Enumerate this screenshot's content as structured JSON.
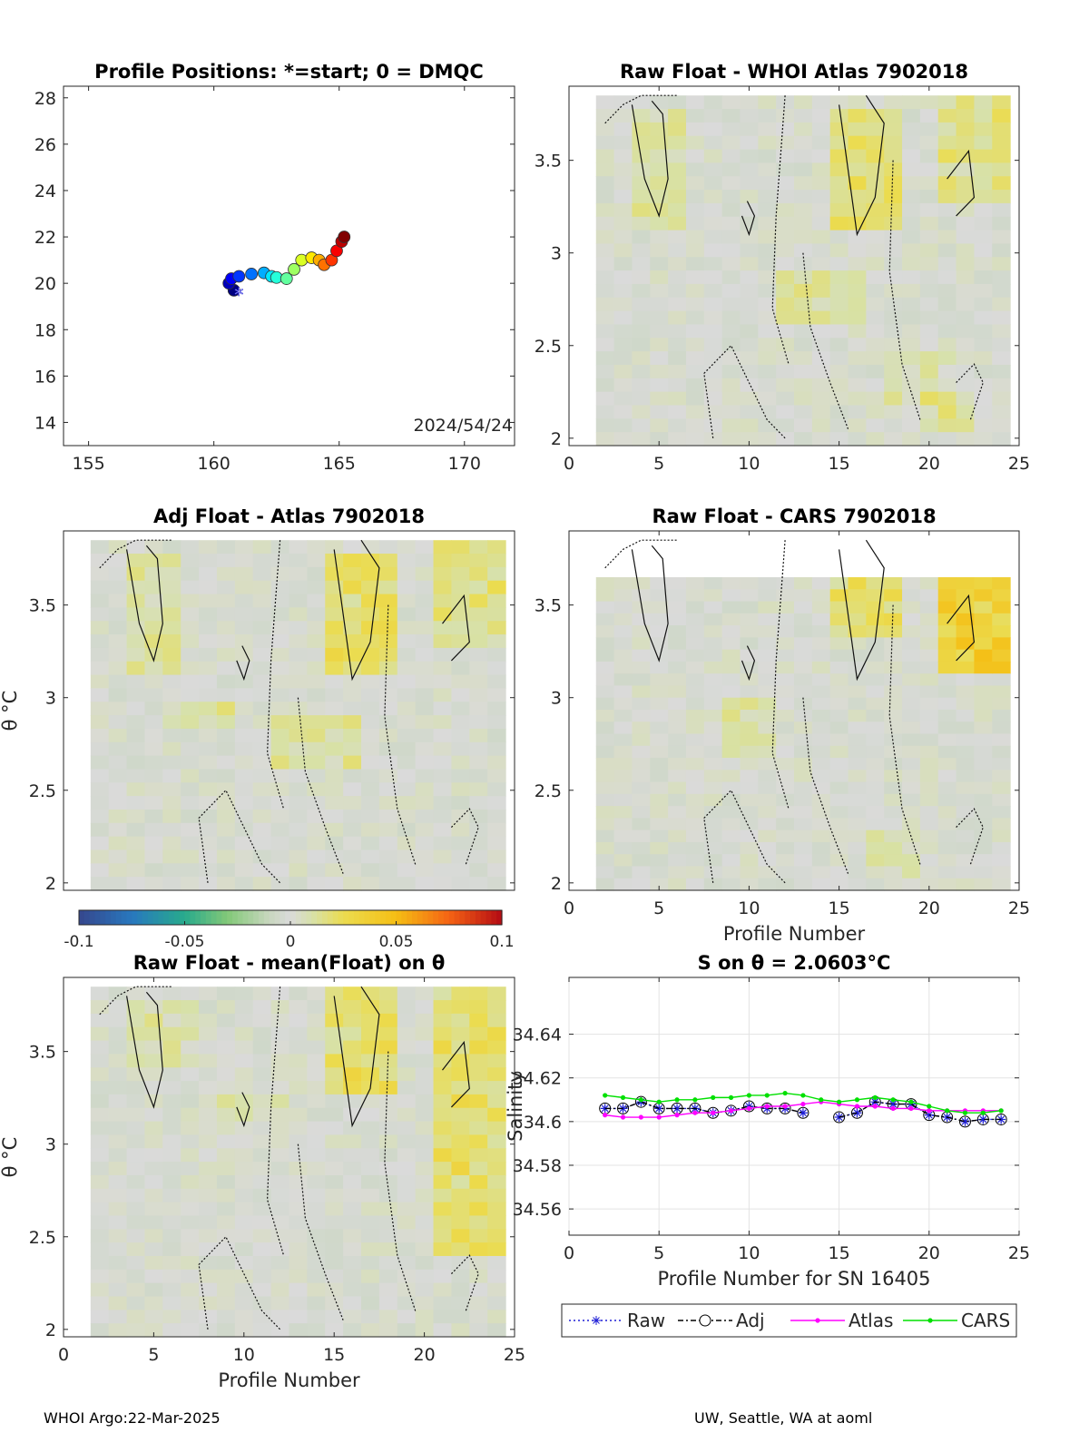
{
  "footer": {
    "left": "WHOI Argo:22-Mar-2025",
    "right": "UW, Seattle, WA at aoml"
  },
  "colorbar": {
    "ticks": [
      "-0.1",
      "-0.05",
      "0",
      "0.05",
      "0.1"
    ],
    "colormap": "parula-to-jet diverging (blue-green-gray-yellow-red)"
  },
  "chart_data": [
    {
      "id": "positions",
      "type": "scatter",
      "title": "Profile Positions: *=start; 0 = DMQC",
      "xlabel": "",
      "ylabel": "",
      "xlim": [
        154,
        172
      ],
      "ylim": [
        13,
        28.5
      ],
      "xticks": [
        "155",
        "160",
        "165",
        "170"
      ],
      "yticks": [
        "14",
        "16",
        "18",
        "20",
        "22",
        "24",
        "26",
        "28"
      ],
      "annotation": "2024/54/24",
      "start_marker": {
        "lon": 161.0,
        "lat": 19.5,
        "symbol": "*"
      },
      "points": [
        {
          "lon": 160.8,
          "lat": 19.7
        },
        {
          "lon": 160.6,
          "lat": 20.0
        },
        {
          "lon": 160.7,
          "lat": 20.2
        },
        {
          "lon": 161.0,
          "lat": 20.3
        },
        {
          "lon": 161.5,
          "lat": 20.4
        },
        {
          "lon": 162.0,
          "lat": 20.45
        },
        {
          "lon": 162.3,
          "lat": 20.3
        },
        {
          "lon": 162.5,
          "lat": 20.25
        },
        {
          "lon": 162.9,
          "lat": 20.2
        },
        {
          "lon": 163.2,
          "lat": 20.6
        },
        {
          "lon": 163.5,
          "lat": 21.0
        },
        {
          "lon": 163.9,
          "lat": 21.1
        },
        {
          "lon": 164.2,
          "lat": 21.0
        },
        {
          "lon": 164.4,
          "lat": 20.8
        },
        {
          "lon": 164.7,
          "lat": 21.0
        },
        {
          "lon": 164.9,
          "lat": 21.4
        },
        {
          "lon": 165.1,
          "lat": 21.8
        },
        {
          "lon": 165.2,
          "lat": 22.0
        }
      ],
      "grid": false
    },
    {
      "id": "raw-whoi",
      "type": "heatmap",
      "title": "Raw Float - WHOI Atlas  7902018",
      "xlabel": "",
      "ylabel": "",
      "xlim": [
        0,
        25
      ],
      "ylim": [
        1.96,
        3.9
      ],
      "xticks": [
        "0",
        "5",
        "10",
        "15",
        "20",
        "25"
      ],
      "yticks": [
        "2",
        "2.5",
        "3",
        "3.5"
      ],
      "profiles": [
        2,
        24
      ],
      "theta_top": 3.85,
      "highlights": [
        {
          "x": [
            15,
            18
          ],
          "y": [
            3.1,
            3.8
          ],
          "v": 0.02
        },
        {
          "x": [
            3.5,
            6
          ],
          "y": [
            3.1,
            3.75
          ],
          "v": 0.01
        },
        {
          "x": [
            21,
            24
          ],
          "y": [
            3.3,
            3.85
          ],
          "v": 0.015
        },
        {
          "x": [
            12,
            16
          ],
          "y": [
            2.6,
            2.9
          ],
          "v": 0.012
        },
        {
          "x": [
            18,
            21
          ],
          "y": [
            2.2,
            2.5
          ],
          "v": 0.008
        },
        {
          "x": [
            20,
            22
          ],
          "y": [
            2.0,
            2.25
          ],
          "v": 0.012
        }
      ],
      "grid": false
    },
    {
      "id": "adj-atlas",
      "type": "heatmap",
      "title": "Adj Float - Atlas  7902018",
      "xlabel": "",
      "ylabel": "θ °C",
      "xlim": [
        0,
        25
      ],
      "ylim": [
        1.96,
        3.9
      ],
      "xticks": [],
      "yticks": [
        "2",
        "2.5",
        "3",
        "3.5"
      ],
      "profiles": [
        2,
        24
      ],
      "theta_top": 3.85,
      "highlights": [
        {
          "x": [
            15,
            18
          ],
          "y": [
            3.1,
            3.8
          ],
          "v": 0.02
        },
        {
          "x": [
            3.5,
            6
          ],
          "y": [
            3.1,
            3.75
          ],
          "v": 0.01
        },
        {
          "x": [
            21,
            24
          ],
          "y": [
            3.3,
            3.85
          ],
          "v": 0.015
        },
        {
          "x": [
            6,
            9
          ],
          "y": [
            2.8,
            3.0
          ],
          "v": 0.012
        },
        {
          "x": [
            12,
            16
          ],
          "y": [
            2.6,
            2.9
          ],
          "v": 0.012
        }
      ],
      "grid": false
    },
    {
      "id": "raw-cars",
      "type": "heatmap",
      "title": "Raw Float - CARS  7902018",
      "xlabel": "Profile Number",
      "ylabel": "",
      "xlim": [
        0,
        25
      ],
      "ylim": [
        1.96,
        3.9
      ],
      "xticks": [
        "0",
        "5",
        "10",
        "15",
        "20",
        "25"
      ],
      "yticks": [
        "2",
        "2.5",
        "3",
        "3.5"
      ],
      "profiles": [
        2,
        24
      ],
      "theta_top": 3.65,
      "highlights": [
        {
          "x": [
            21,
            24
          ],
          "y": [
            3.1,
            3.9
          ],
          "v": 0.035
        },
        {
          "x": [
            15,
            18
          ],
          "y": [
            3.3,
            3.65
          ],
          "v": 0.02
        },
        {
          "x": [
            9,
            11
          ],
          "y": [
            2.7,
            3.0
          ],
          "v": 0.01
        },
        {
          "x": [
            17,
            19
          ],
          "y": [
            2.0,
            2.3
          ],
          "v": 0.008
        }
      ],
      "grid": false
    },
    {
      "id": "raw-mean",
      "type": "heatmap",
      "title": "Raw Float - mean(Float) on θ",
      "xlabel": "Profile Number",
      "ylabel": "θ °C",
      "xlim": [
        0,
        25
      ],
      "ylim": [
        1.96,
        3.9
      ],
      "xticks": [
        "0",
        "5",
        "10",
        "15",
        "20",
        "25"
      ],
      "yticks": [
        "2",
        "2.5",
        "3",
        "3.5"
      ],
      "profiles": [
        2,
        24
      ],
      "theta_top": 3.85,
      "highlights": [
        {
          "x": [
            15,
            18
          ],
          "y": [
            3.3,
            3.85
          ],
          "v": 0.02
        },
        {
          "x": [
            21,
            24
          ],
          "y": [
            2.4,
            3.85
          ],
          "v": 0.02
        },
        {
          "x": [
            4,
            7
          ],
          "y": [
            3.4,
            3.8
          ],
          "v": 0.01
        },
        {
          "x": [
            9,
            12
          ],
          "y": [
            3.1,
            3.3
          ],
          "v": 0.008
        }
      ],
      "grid": false
    },
    {
      "id": "salinity",
      "type": "line",
      "title": "S on θ = 2.0603°C",
      "xlabel": "Profile Number for SN 16405",
      "ylabel": "Salinity",
      "xlim": [
        0,
        25
      ],
      "ylim": [
        34.548,
        34.666
      ],
      "xticks": [
        "0",
        "5",
        "10",
        "15",
        "20",
        "25"
      ],
      "yticks": [
        "34.56",
        "34.58",
        "34.6",
        "34.62",
        "34.64"
      ],
      "grid": true,
      "legend_position": "below",
      "x": [
        2,
        3,
        4,
        5,
        6,
        7,
        8,
        9,
        10,
        11,
        12,
        13,
        14,
        15,
        16,
        17,
        18,
        19,
        20,
        21,
        22,
        23,
        24
      ],
      "series": [
        {
          "name": "Raw",
          "color": "#1f1fd6",
          "values": [
            34.606,
            34.606,
            34.609,
            34.606,
            34.606,
            34.606,
            34.604,
            34.605,
            34.607,
            34.606,
            34.606,
            34.604,
            null,
            34.602,
            34.604,
            34.609,
            34.608,
            34.608,
            34.603,
            34.602,
            34.6,
            34.601,
            34.601
          ]
        },
        {
          "name": "Adj",
          "color": "#000000",
          "values": [
            34.606,
            34.606,
            34.609,
            34.606,
            34.606,
            34.606,
            34.604,
            34.605,
            34.607,
            34.606,
            34.606,
            34.604,
            null,
            34.602,
            34.604,
            34.609,
            34.608,
            34.608,
            34.603,
            34.602,
            34.6,
            34.601,
            34.601
          ]
        },
        {
          "name": "Atlas",
          "color": "#ff00ff",
          "values": [
            34.603,
            34.602,
            34.602,
            34.602,
            34.603,
            34.604,
            34.604,
            34.605,
            34.606,
            34.607,
            34.607,
            34.608,
            34.609,
            34.608,
            34.607,
            34.607,
            34.606,
            34.606,
            34.605,
            34.605,
            34.605,
            34.605,
            34.605
          ]
        },
        {
          "name": "CARS",
          "color": "#00e000",
          "values": [
            34.612,
            34.611,
            34.61,
            34.609,
            34.61,
            34.61,
            34.611,
            34.611,
            34.612,
            34.612,
            34.613,
            34.612,
            34.61,
            34.609,
            34.61,
            34.611,
            34.61,
            34.609,
            34.607,
            34.605,
            34.604,
            34.604,
            34.605
          ]
        }
      ]
    }
  ]
}
